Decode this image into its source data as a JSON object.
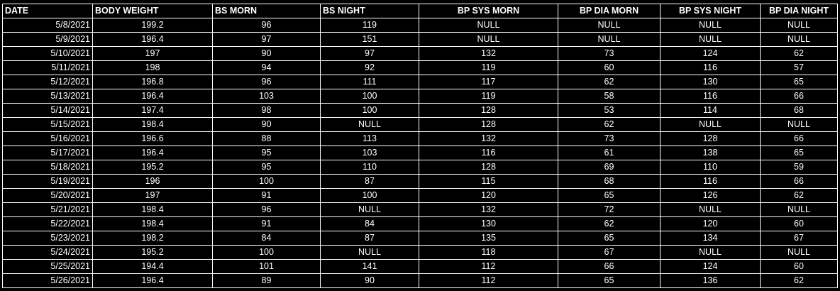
{
  "columns": [
    {
      "label": "DATE",
      "header_align": "left",
      "cell_align": "right"
    },
    {
      "label": "BODY WEIGHT",
      "header_align": "left",
      "cell_align": "center"
    },
    {
      "label": "BS MORN",
      "header_align": "left",
      "cell_align": "center"
    },
    {
      "label": "BS NIGHT",
      "header_align": "left",
      "cell_align": "center"
    },
    {
      "label": "BP SYS MORN",
      "header_align": "center",
      "cell_align": "center"
    },
    {
      "label": "BP DIA MORN",
      "header_align": "center",
      "cell_align": "center"
    },
    {
      "label": "BP SYS NIGHT",
      "header_align": "center",
      "cell_align": "center"
    },
    {
      "label": "BP DIA NIGHT",
      "header_align": "center",
      "cell_align": "center"
    }
  ],
  "rows": [
    [
      "5/8/2021",
      "199.2",
      "96",
      "119",
      "NULL",
      "NULL",
      "NULL",
      "NULL"
    ],
    [
      "5/9/2021",
      "196.4",
      "97",
      "151",
      "NULL",
      "NULL",
      "NULL",
      "NULL"
    ],
    [
      "5/10/2021",
      "197",
      "90",
      "97",
      "132",
      "73",
      "124",
      "62"
    ],
    [
      "5/11/2021",
      "198",
      "94",
      "92",
      "119",
      "60",
      "116",
      "57"
    ],
    [
      "5/12/2021",
      "196.8",
      "96",
      "111",
      "117",
      "62",
      "130",
      "65"
    ],
    [
      "5/13/2021",
      "196.4",
      "103",
      "100",
      "119",
      "58",
      "116",
      "66"
    ],
    [
      "5/14/2021",
      "197.4",
      "98",
      "100",
      "128",
      "53",
      "114",
      "68"
    ],
    [
      "5/15/2021",
      "198.4",
      "90",
      "NULL",
      "128",
      "62",
      "NULL",
      "NULL"
    ],
    [
      "5/16/2021",
      "196.6",
      "88",
      "113",
      "132",
      "73",
      "128",
      "66"
    ],
    [
      "5/17/2021",
      "196.4",
      "95",
      "103",
      "116",
      "61",
      "138",
      "65"
    ],
    [
      "5/18/2021",
      "195.2",
      "95",
      "110",
      "128",
      "69",
      "110",
      "59"
    ],
    [
      "5/19/2021",
      "196",
      "100",
      "87",
      "115",
      "68",
      "116",
      "66"
    ],
    [
      "5/20/2021",
      "197",
      "91",
      "100",
      "120",
      "65",
      "126",
      "62"
    ],
    [
      "5/21/2021",
      "198.4",
      "96",
      "NULL",
      "132",
      "72",
      "NULL",
      "NULL"
    ],
    [
      "5/22/2021",
      "198.4",
      "91",
      "84",
      "130",
      "62",
      "120",
      "60"
    ],
    [
      "5/23/2021",
      "198.2",
      "84",
      "87",
      "135",
      "65",
      "134",
      "67"
    ],
    [
      "5/24/2021",
      "195.2",
      "100",
      "NULL",
      "118",
      "67",
      "NULL",
      "NULL"
    ],
    [
      "5/25/2021",
      "194.4",
      "101",
      "141",
      "112",
      "66",
      "124",
      "60"
    ],
    [
      "5/26/2021",
      "196.4",
      "89",
      "90",
      "112",
      "65",
      "136",
      "62"
    ]
  ],
  "colors": {
    "background": "#000000",
    "text": "#ffffff",
    "grid": "#ffffff"
  }
}
